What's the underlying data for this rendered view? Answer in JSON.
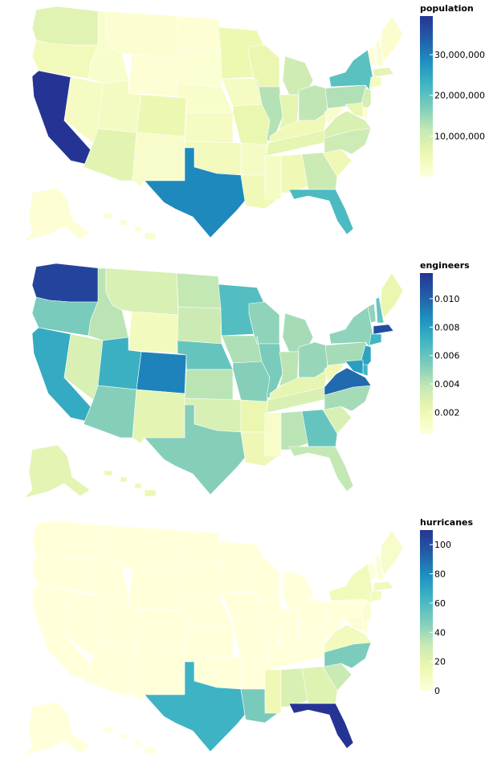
{
  "chart_data": [
    {
      "type": "choropleth",
      "legend_title": "population",
      "colorscale": [
        "#ffffd9",
        "#edf8b1",
        "#c7e9b4",
        "#7fcdbb",
        "#41b6c4",
        "#1d91c0",
        "#225ea8",
        "#253494"
      ],
      "range": [
        0,
        39500000
      ],
      "ticks": [
        {
          "value": 10000000,
          "label": "10,000,000"
        },
        {
          "value": 20000000,
          "label": "20,000,000"
        },
        {
          "value": 30000000,
          "label": "30,000,000"
        }
      ],
      "values": {
        "WA": 7600000,
        "OR": 4200000,
        "CA": 39500000,
        "NV": 3100000,
        "ID": 1800000,
        "MT": 1080000,
        "WY": 580000,
        "UT": 3300000,
        "AZ": 7200000,
        "CO": 5800000,
        "NM": 2100000,
        "ND": 780000,
        "SD": 890000,
        "NE": 1960000,
        "KS": 2940000,
        "OK": 3960000,
        "TX": 29100000,
        "MN": 5700000,
        "IA": 3190000,
        "MO": 6150000,
        "AR": 3010000,
        "LA": 4660000,
        "WI": 5890000,
        "IL": 12800000,
        "MI": 10000000,
        "IN": 6790000,
        "OH": 11800000,
        "KY": 4500000,
        "TN": 6900000,
        "MS": 2960000,
        "AL": 5020000,
        "GA": 10700000,
        "FL": 21500000,
        "SC": 5120000,
        "NC": 10400000,
        "VA": 8630000,
        "WV": 1790000,
        "PA": 13000000,
        "NY": 20200000,
        "VT": 640000,
        "NH": 1380000,
        "ME": 1360000,
        "MA": 7030000,
        "CT": 3600000,
        "NJ": 9290000,
        "DE": 990000,
        "MD": 6180000,
        "AK": 730000,
        "HI": 1450000
      }
    },
    {
      "type": "choropleth",
      "legend_title": "engineers",
      "colorscale": [
        "#ffffd9",
        "#edf8b1",
        "#c7e9b4",
        "#7fcdbb",
        "#41b6c4",
        "#1d91c0",
        "#225ea8",
        "#253494"
      ],
      "range": [
        0.0005,
        0.0118
      ],
      "ticks": [
        {
          "value": 0.002,
          "label": "0.002"
        },
        {
          "value": 0.004,
          "label": "0.004"
        },
        {
          "value": 0.006,
          "label": "0.006"
        },
        {
          "value": 0.008,
          "label": "0.008"
        },
        {
          "value": 0.01,
          "label": "0.010"
        }
      ],
      "values": {
        "WA": 0.0112,
        "OR": 0.0055,
        "CA": 0.0075,
        "NV": 0.003,
        "ID": 0.004,
        "MT": 0.003,
        "WY": 0.0016,
        "UT": 0.0072,
        "AZ": 0.0052,
        "CO": 0.009,
        "NM": 0.0025,
        "ND": 0.0038,
        "SD": 0.0035,
        "NE": 0.006,
        "KS": 0.004,
        "OK": 0.003,
        "TX": 0.0052,
        "MN": 0.0065,
        "IA": 0.0043,
        "MO": 0.0052,
        "AR": 0.0022,
        "LA": 0.002,
        "WI": 0.005,
        "IL": 0.0055,
        "MI": 0.0045,
        "IN": 0.004,
        "OH": 0.0048,
        "KY": 0.0024,
        "TN": 0.003,
        "MS": 0.0012,
        "AL": 0.004,
        "GA": 0.006,
        "FL": 0.0038,
        "SC": 0.003,
        "NC": 0.0045,
        "VA": 0.0098,
        "WV": 0.002,
        "PA": 0.0045,
        "NY": 0.005,
        "VT": 0.005,
        "NH": 0.006,
        "ME": 0.0022,
        "MA": 0.0108,
        "CT": 0.007,
        "NJ": 0.0078,
        "DE": 0.007,
        "MD": 0.008,
        "AK": 0.0025,
        "HI": 0.002
      }
    },
    {
      "type": "choropleth",
      "legend_title": "hurricanes",
      "colorscale": [
        "#ffffd9",
        "#edf8b1",
        "#c7e9b4",
        "#7fcdbb",
        "#41b6c4",
        "#1d91c0",
        "#225ea8",
        "#253494"
      ],
      "range": [
        0,
        110
      ],
      "ticks": [
        {
          "value": 0,
          "label": "0"
        },
        {
          "value": 20,
          "label": "20"
        },
        {
          "value": 40,
          "label": "40"
        },
        {
          "value": 60,
          "label": "60"
        },
        {
          "value": 80,
          "label": "80"
        },
        {
          "value": 100,
          "label": "100"
        }
      ],
      "values": {
        "WA": 0,
        "OR": 0,
        "CA": 0,
        "NV": 0,
        "ID": 0,
        "MT": 0,
        "WY": 0,
        "UT": 0,
        "AZ": 0,
        "CO": 0,
        "NM": 0,
        "ND": 0,
        "SD": 0,
        "NE": 0,
        "KS": 0,
        "OK": 0,
        "TX": 64,
        "MN": 0,
        "IA": 0,
        "MO": 0,
        "AR": 0,
        "LA": 49,
        "WI": 0,
        "IL": 0,
        "MI": 0,
        "IN": 0,
        "OH": 0,
        "KY": 0,
        "TN": 0,
        "MS": 14,
        "AL": 24,
        "GA": 22,
        "FL": 114,
        "SC": 30,
        "NC": 48,
        "VA": 11,
        "WV": 0,
        "PA": 0,
        "NY": 12,
        "VT": 1,
        "NH": 3,
        "ME": 6,
        "MA": 12,
        "CT": 11,
        "NJ": 4,
        "DE": 2,
        "MD": 3,
        "AK": 0,
        "HI": 0
      }
    }
  ]
}
